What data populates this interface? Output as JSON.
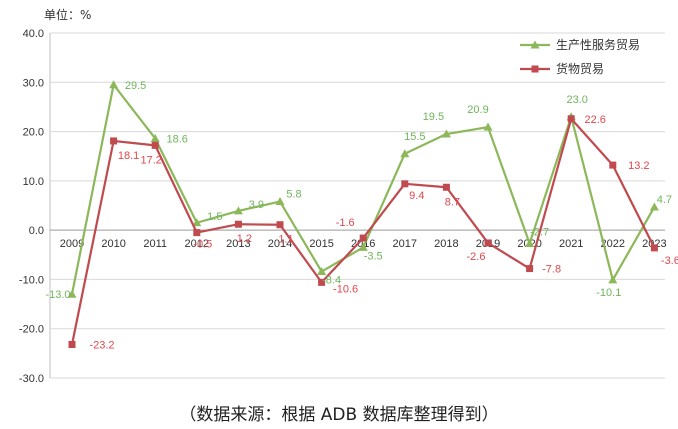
{
  "unit_label": "单位：%",
  "source_note": "（数据来源：根据 ADB 数据库整理得到）",
  "chart_data": {
    "type": "line",
    "x": [
      "2009",
      "2010",
      "2011",
      "2012",
      "2013",
      "2014",
      "2015",
      "2016",
      "2017",
      "2018",
      "2019",
      "2020",
      "2021",
      "2022",
      "2023"
    ],
    "y_ticks": [
      "40.0",
      "30.0",
      "20.0",
      "10.0",
      "0.0",
      "-10.0",
      "-20.0",
      "-30.0"
    ],
    "ylim": [
      -30,
      40
    ],
    "grid": true,
    "legend_position": "top-right",
    "series": [
      {
        "name": "生产性服务贸易",
        "color": "#8cb85a",
        "label_color": "#6fb55a",
        "marker": "triangle",
        "values": [
          -13.0,
          29.5,
          18.6,
          1.5,
          3.9,
          5.8,
          -8.4,
          -3.5,
          15.5,
          19.5,
          20.9,
          -2.7,
          23.0,
          -10.1,
          4.7
        ],
        "labels": [
          "-13.0",
          "29.5",
          "18.6",
          "1.5",
          "3.9",
          "5.8",
          "-8.4",
          "-3.5",
          "15.5",
          "19.5",
          "20.9",
          "-2.7",
          "23.0",
          "-10.1",
          "4.7"
        ]
      },
      {
        "name": "货物贸易",
        "color": "#c04a4e",
        "label_color": "#e0484c",
        "marker": "square",
        "values": [
          -23.2,
          18.1,
          17.2,
          -0.5,
          1.2,
          1.1,
          -10.6,
          -1.6,
          9.4,
          8.7,
          -2.6,
          -7.8,
          22.6,
          13.2,
          -3.6
        ],
        "labels": [
          "-23.2",
          "18.1",
          "17.2",
          "-0.5",
          "1.2",
          "1.1",
          "-10.6",
          "-1.6",
          "9.4",
          "8.7",
          "-2.6",
          "-7.8",
          "22.6",
          "13.2",
          "-3.6"
        ]
      }
    ]
  }
}
